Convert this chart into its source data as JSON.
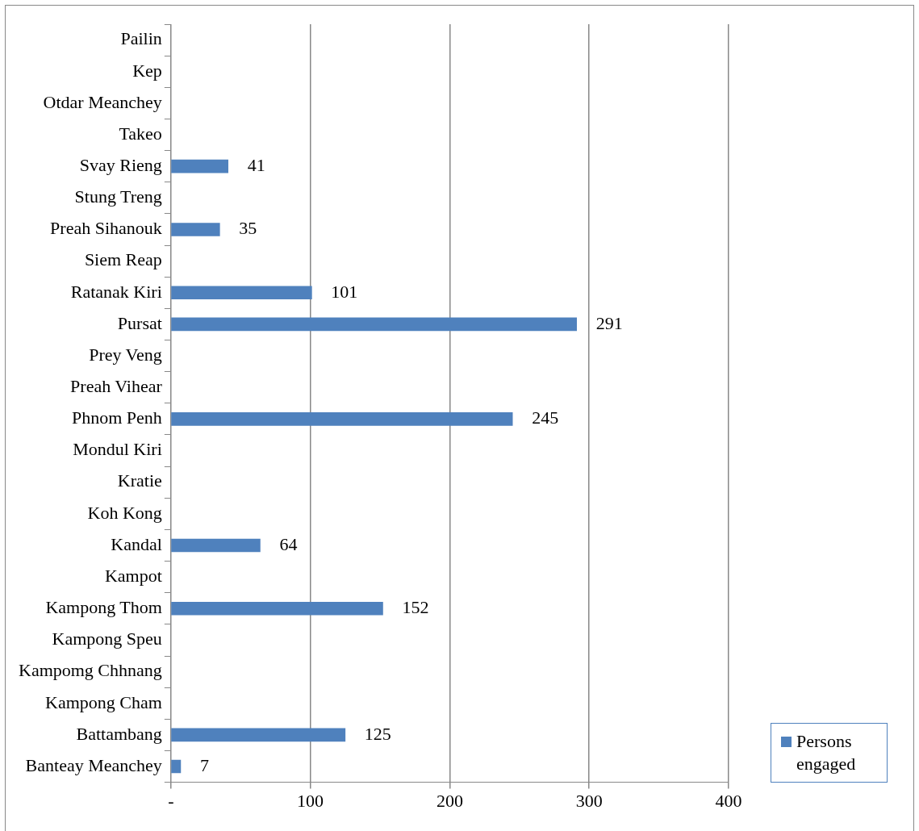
{
  "chart_data": {
    "type": "bar",
    "orientation": "horizontal",
    "categories": [
      "Pailin",
      "Kep",
      "Otdar Meanchey",
      "Takeo",
      "Svay Rieng",
      "Stung Treng",
      "Preah Sihanouk",
      "Siem Reap",
      "Ratanak Kiri",
      "Pursat",
      "Prey Veng",
      "Preah Vihear",
      "Phnom Penh",
      "Mondul Kiri",
      "Kratie",
      "Koh Kong",
      "Kandal",
      "Kampot",
      "Kampong Thom",
      "Kampong Speu",
      "Kampomg Chhnang",
      "Kampong Cham",
      "Battambang",
      "Banteay Meanchey"
    ],
    "series": [
      {
        "name": "Persons engaged",
        "color": "#4f81bd",
        "values": [
          null,
          null,
          null,
          null,
          41,
          null,
          35,
          null,
          101,
          291,
          null,
          null,
          245,
          null,
          null,
          null,
          64,
          null,
          152,
          null,
          null,
          null,
          125,
          7
        ]
      }
    ],
    "xlim": [
      0,
      400
    ],
    "xticks": [
      {
        "value": 0,
        "label": "-"
      },
      100,
      200,
      300,
      400
    ],
    "grid": "x",
    "legend": "bottom right",
    "data_labels": true
  }
}
